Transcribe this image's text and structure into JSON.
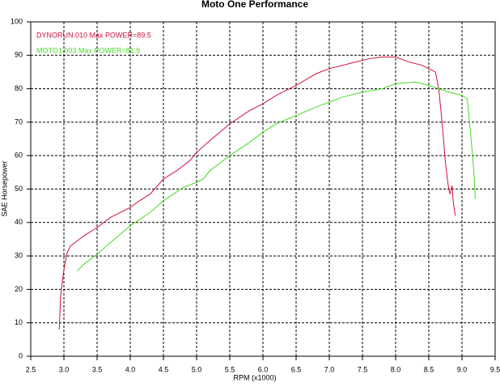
{
  "chart_data": {
    "type": "line",
    "title": "Moto One Performance",
    "x_label": "RPM (x1000)",
    "y_label": "SAE Horsepower",
    "annotations": [
      "DYNORUN.010 Max POWER=89.5",
      "MOTO1.003 Max POWER=81.9"
    ],
    "xlim": [
      2.5,
      9.5
    ],
    "ylim": [
      0,
      100
    ],
    "grid": true,
    "xticks": [
      2.5,
      {
        "value": 3,
        "label": "3.0"
      },
      3.5,
      {
        "value": 4,
        "label": "4.0"
      },
      4.5,
      {
        "value": 5,
        "label": "5.0"
      },
      5.5,
      {
        "value": 6,
        "label": "6.0"
      },
      6.5,
      {
        "value": 7,
        "label": "7.0"
      },
      7.5,
      {
        "value": 8,
        "label": "8.0"
      },
      8.5,
      {
        "value": 9,
        "label": "9.0"
      },
      9.5
    ],
    "yticks": [
      0,
      10,
      20,
      30,
      40,
      50,
      60,
      70,
      80,
      90,
      100
    ],
    "series": [
      {
        "color": "#d0103a",
        "x": [
          2.93,
          2.95,
          3.0,
          3.05,
          3.1,
          3.2,
          3.3,
          3.5,
          3.7,
          3.9,
          4.0,
          4.1,
          4.3,
          4.5,
          4.7,
          4.9,
          5.0,
          5.2,
          5.5,
          5.8,
          6.0,
          6.2,
          6.5,
          6.8,
          7.0,
          7.3,
          7.6,
          7.8,
          8.0,
          8.2,
          8.4,
          8.6,
          8.65,
          8.7,
          8.75,
          8.8,
          8.82,
          8.85,
          8.87,
          8.9
        ],
        "values": [
          8,
          18,
          26,
          31,
          33,
          34.5,
          36,
          38.5,
          41.5,
          43.5,
          44.5,
          46,
          48.5,
          53,
          55.5,
          58.5,
          61,
          64.5,
          69.5,
          73.5,
          75.5,
          78,
          81,
          84.5,
          86,
          87.5,
          89,
          89.5,
          89.5,
          88,
          87,
          85,
          80,
          70,
          58,
          50,
          48.5,
          51,
          46,
          42
        ]
      },
      {
        "color": "#44dd22",
        "x": [
          3.2,
          3.3,
          3.5,
          3.7,
          4.0,
          4.3,
          4.5,
          4.8,
          5.0,
          5.1,
          5.2,
          5.5,
          5.8,
          6.0,
          6.2,
          6.5,
          6.8,
          7.0,
          7.2,
          7.5,
          7.8,
          8.0,
          8.3,
          8.5,
          8.8,
          9.0,
          9.08,
          9.1,
          9.15,
          9.18,
          9.2
        ],
        "values": [
          25.5,
          27.5,
          30.5,
          34,
          39,
          43,
          46.5,
          50.5,
          52,
          53,
          55.5,
          60,
          64,
          67,
          69.5,
          72,
          74.5,
          76,
          77.5,
          79,
          80,
          81.5,
          82,
          81,
          79,
          78,
          77,
          73,
          62,
          55,
          47
        ]
      }
    ]
  }
}
